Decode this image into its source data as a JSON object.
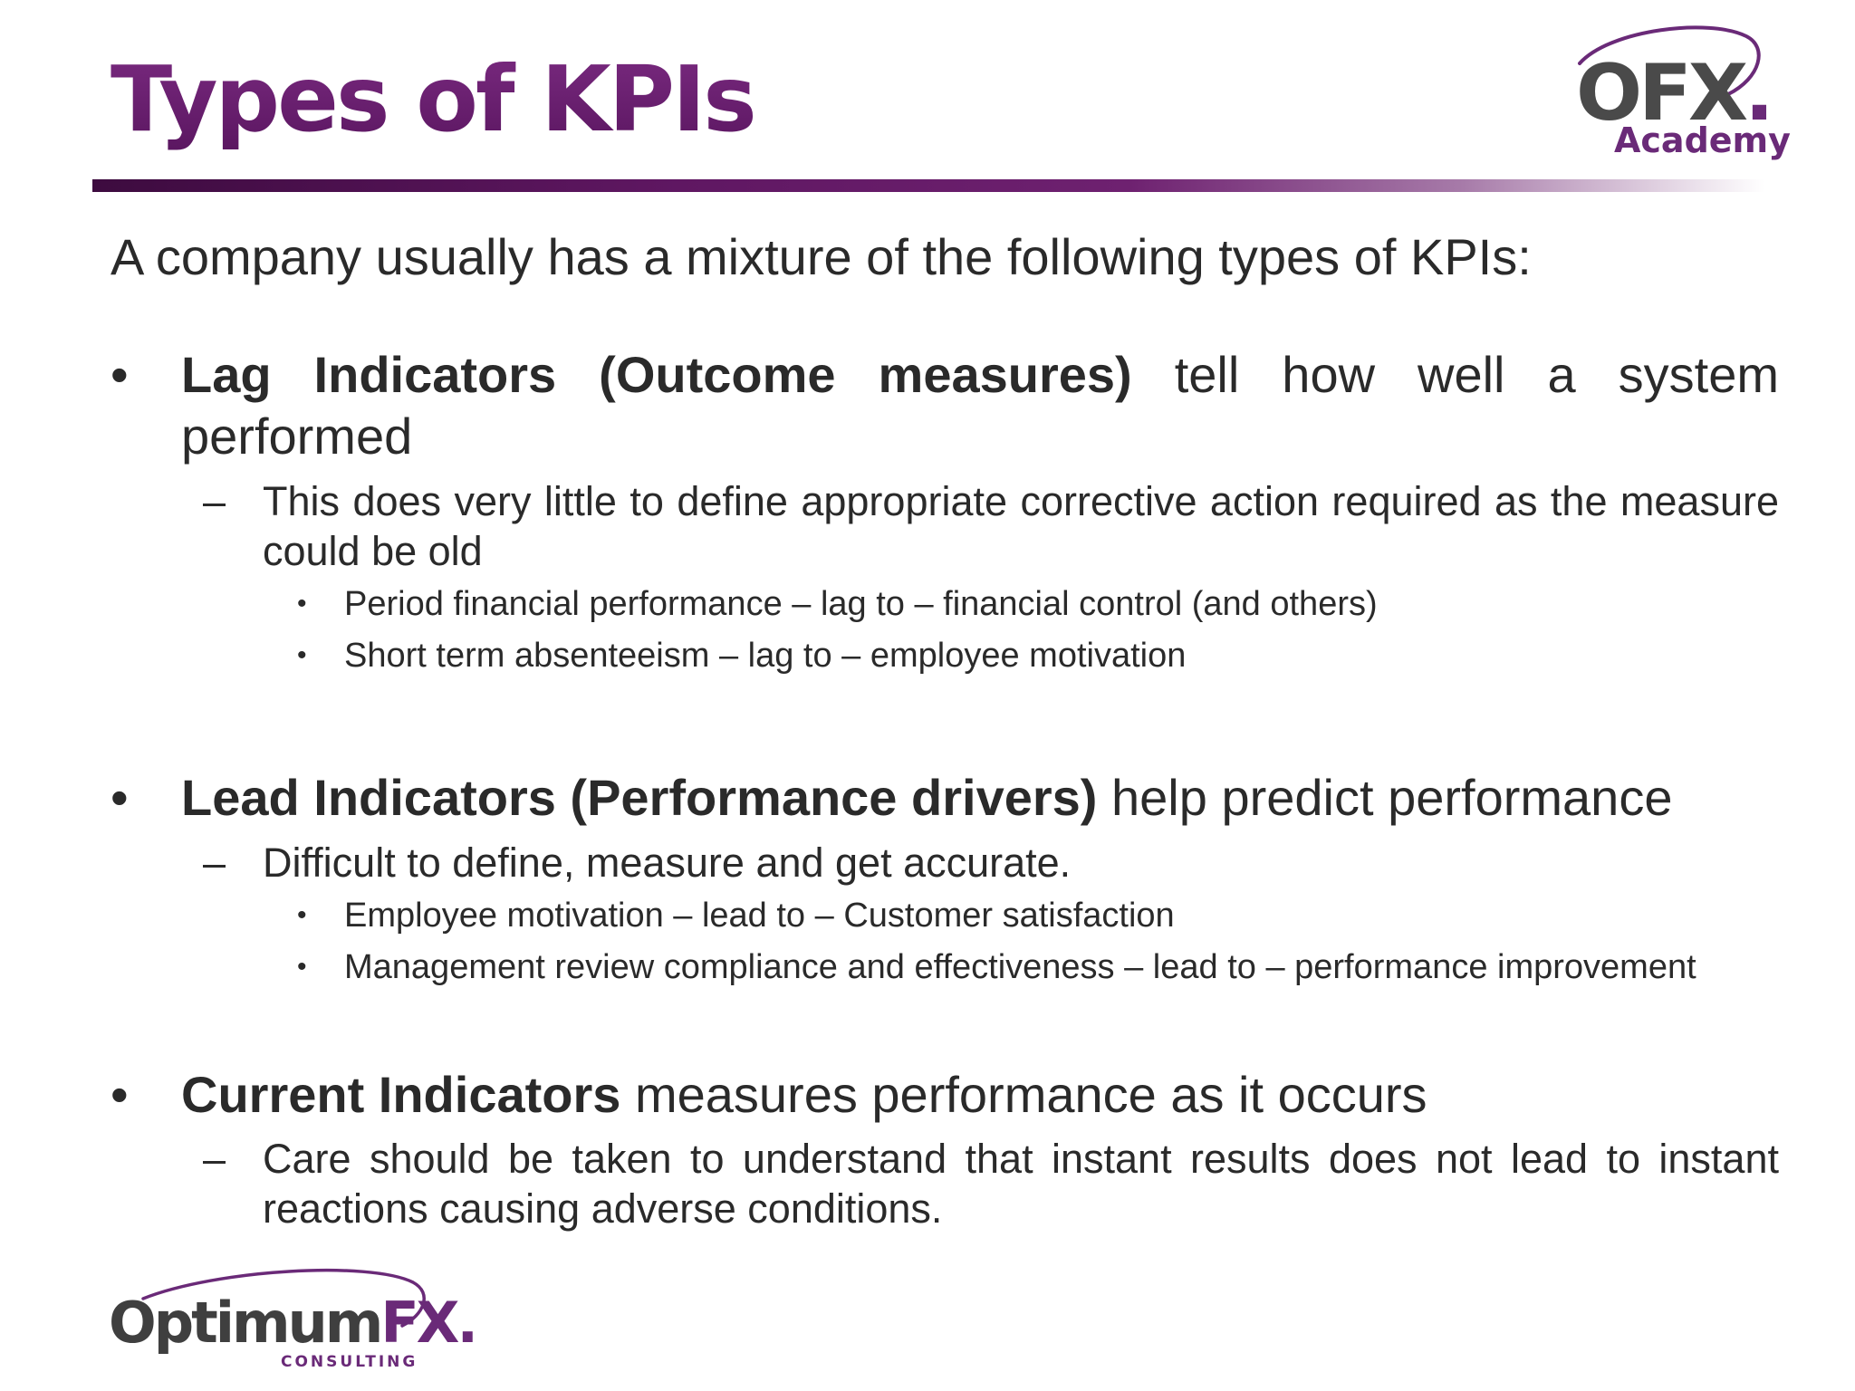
{
  "slide": {
    "title": "Types of KPIs",
    "intro": "A company usually has a mixture of the following types of KPIs:"
  },
  "logo_top": {
    "word_dark": "OFX",
    "word_accent": ".",
    "sub": "Academy"
  },
  "logo_bottom": {
    "word_dark": "Optimum",
    "word_accent": "FX.",
    "sub": "CONSULTING"
  },
  "bullet_symbol": "•",
  "dash_symbol": "–",
  "items": [
    {
      "bold": "Lag Indicators (Outcome measures)",
      "rest": " tell how well a system performed",
      "sub": [
        {
          "text": "This does very little to define appropriate corrective action required as the measure could be old",
          "examples": [
            "Period financial performance – lag to – financial control (and others)",
            "Short term absenteeism – lag to – employee motivation"
          ]
        }
      ]
    },
    {
      "bold": "Lead Indicators (Performance drivers)",
      "rest": " help predict performance",
      "sub": [
        {
          "text": "Difficult to define, measure and get accurate.",
          "examples": [
            "Employee motivation – lead to – Customer satisfaction",
            "Management review compliance and effectiveness – lead to – performance improvement"
          ]
        }
      ]
    },
    {
      "bold": "Current Indicators",
      "rest": " measures performance as it occurs",
      "sub": [
        {
          "text": "Care should be taken to understand that instant results does not lead to instant reactions causing adverse conditions.",
          "examples": []
        }
      ]
    }
  ]
}
